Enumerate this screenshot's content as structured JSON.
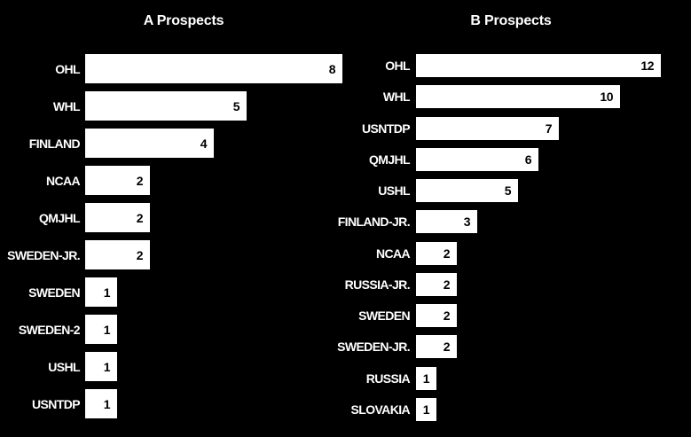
{
  "page": {
    "background_color": "#000000",
    "bar_color": "#ffffff",
    "label_color": "#ffffff",
    "value_label_color": "#000000"
  },
  "chart_data": [
    {
      "type": "bar",
      "orientation": "horizontal",
      "title": "A Prospects",
      "categories": [
        "OHL",
        "WHL",
        "FINLAND",
        "NCAA",
        "QMJHL",
        "SWEDEN-JR.",
        "SWEDEN",
        "SWEDEN-2",
        "USHL",
        "USNTDP"
      ],
      "values": [
        8,
        5,
        4,
        2,
        2,
        2,
        1,
        1,
        1,
        1
      ],
      "xlim": [
        0,
        8
      ],
      "grid": false,
      "legend": false,
      "value_labels": "inside-right"
    },
    {
      "type": "bar",
      "orientation": "horizontal",
      "title": "B Prospects",
      "categories": [
        "OHL",
        "WHL",
        "USNTDP",
        "QMJHL",
        "USHL",
        "FINLAND-JR.",
        "NCAA",
        "RUSSIA-JR.",
        "SWEDEN",
        "SWEDEN-JR.",
        "RUSSIA",
        "SLOVAKIA"
      ],
      "values": [
        12,
        10,
        7,
        6,
        5,
        3,
        2,
        2,
        2,
        2,
        1,
        1
      ],
      "xlim": [
        0,
        12
      ],
      "grid": false,
      "legend": false,
      "value_labels": "inside-right"
    }
  ]
}
